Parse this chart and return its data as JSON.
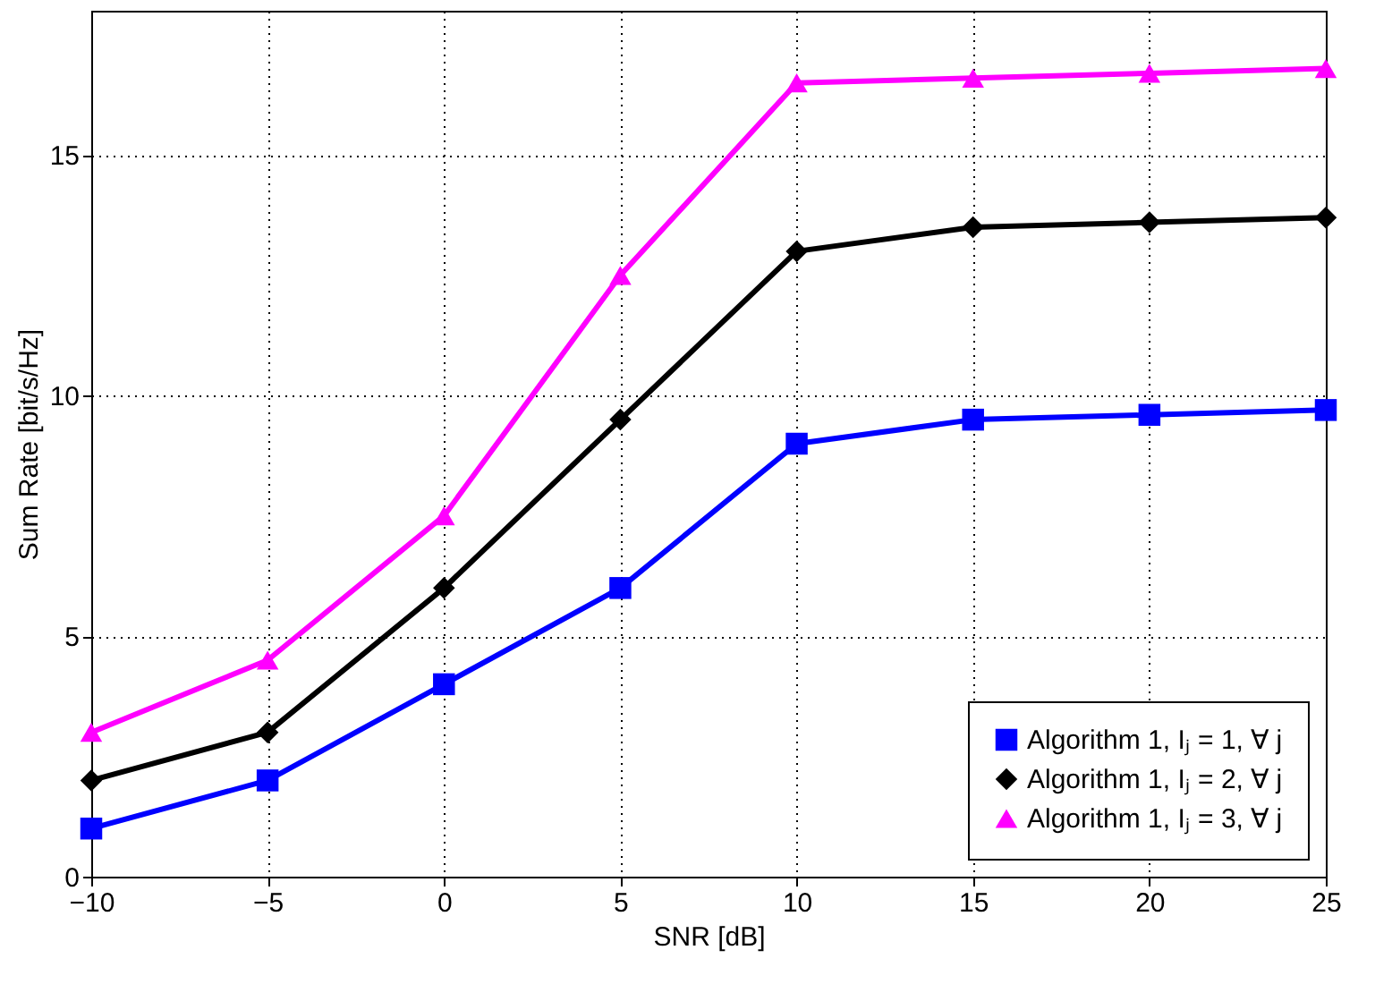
{
  "chart_data": {
    "type": "line",
    "xlabel": "SNR [dB]",
    "ylabel": "Sum Rate [bit/s/Hz]",
    "x": [
      -10,
      -5,
      0,
      5,
      10,
      15,
      20,
      25
    ],
    "series": [
      {
        "name": "Algorithm 1, Iⱼ = 1, ∀ j",
        "color": "#0000ff",
        "marker": "square",
        "values": [
          1,
          2,
          4,
          6,
          9,
          9.5,
          9.6,
          9.7
        ]
      },
      {
        "name": "Algorithm 1, Iⱼ = 2, ∀ j",
        "color": "#000000",
        "marker": "diamond",
        "values": [
          2,
          3,
          6,
          9.5,
          13,
          13.5,
          13.6,
          13.7
        ]
      },
      {
        "name": "Algorithm 1, Iⱼ = 3, ∀ j",
        "color": "#ff00ff",
        "marker": "triangle",
        "values": [
          3,
          4.5,
          7.5,
          12.5,
          16.5,
          16.6,
          16.7,
          16.8
        ]
      }
    ],
    "xlim": [
      -10,
      25
    ],
    "xticks": [
      -10,
      -5,
      0,
      5,
      10,
      15,
      20,
      25
    ],
    "ylim": [
      0,
      18
    ],
    "yticks": [
      0,
      5,
      10,
      15
    ],
    "grid": true,
    "legend": "bottom right",
    "line_style": "solid"
  }
}
